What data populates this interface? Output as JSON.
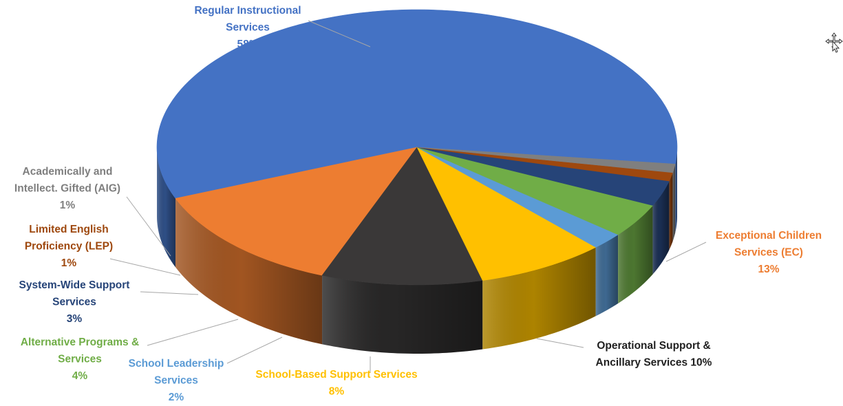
{
  "chart_data": {
    "type": "pie",
    "title": "",
    "three_d": true,
    "legend": "none",
    "slices": [
      {
        "label": "Regular Instructional Services",
        "value": 58,
        "pct_label": "58%",
        "color": "#4472C4",
        "text_color": "#4472C4"
      },
      {
        "label": "Exceptional Children Services (EC)",
        "value": 13,
        "pct_label": "13%",
        "color": "#ED7D31",
        "text_color": "#ED7D31"
      },
      {
        "label": "Operational Support & Ancillary Services",
        "value": 10,
        "pct_label": "10%",
        "color": "#3A3838",
        "text_color": "#1F1F1F"
      },
      {
        "label": "School-Based Support Services",
        "value": 8,
        "pct_label": "8%",
        "color": "#FFC000",
        "text_color": "#FFC000"
      },
      {
        "label": "School Leadership Services",
        "value": 2,
        "pct_label": "2%",
        "color": "#5B9BD5",
        "text_color": "#5B9BD5"
      },
      {
        "label": "Alternative Programs & Services",
        "value": 4,
        "pct_label": "4%",
        "color": "#70AD47",
        "text_color": "#70AD47"
      },
      {
        "label": "System-Wide Support Services",
        "value": 3,
        "pct_label": "3%",
        "color": "#264478",
        "text_color": "#264478"
      },
      {
        "label": "Limited English Proficiency (LEP)",
        "value": 1,
        "pct_label": "1%",
        "color": "#9E480E",
        "text_color": "#9E480E"
      },
      {
        "label": "Academically and Intellect. Gifted (AIG)",
        "value": 1,
        "pct_label": "1%",
        "color": "#7F7F7F",
        "text_color": "#7F7F7F"
      }
    ],
    "data_labels": [
      {
        "lines": [
          "Regular Instructional",
          "Services",
          "58%"
        ]
      },
      {
        "lines": [
          "Exceptional Children",
          "Services (EC)",
          "13%"
        ]
      },
      {
        "lines": [
          "Operational Support &",
          "Ancillary Services 10%"
        ]
      },
      {
        "lines": [
          "School-Based Support Services",
          "8%"
        ]
      },
      {
        "lines": [
          "School Leadership",
          "Services",
          "2%"
        ]
      },
      {
        "lines": [
          "Alternative Programs &",
          "Services",
          "4%"
        ]
      },
      {
        "lines": [
          "System-Wide Support",
          "Services",
          "3%"
        ]
      },
      {
        "lines": [
          "Limited English",
          "Proficiency (LEP)",
          "1%"
        ]
      },
      {
        "lines": [
          "Academically and",
          "Intellect. Gifted (AIG)",
          "1%"
        ]
      }
    ]
  },
  "cursor": {
    "icon": "move-cursor-icon"
  }
}
